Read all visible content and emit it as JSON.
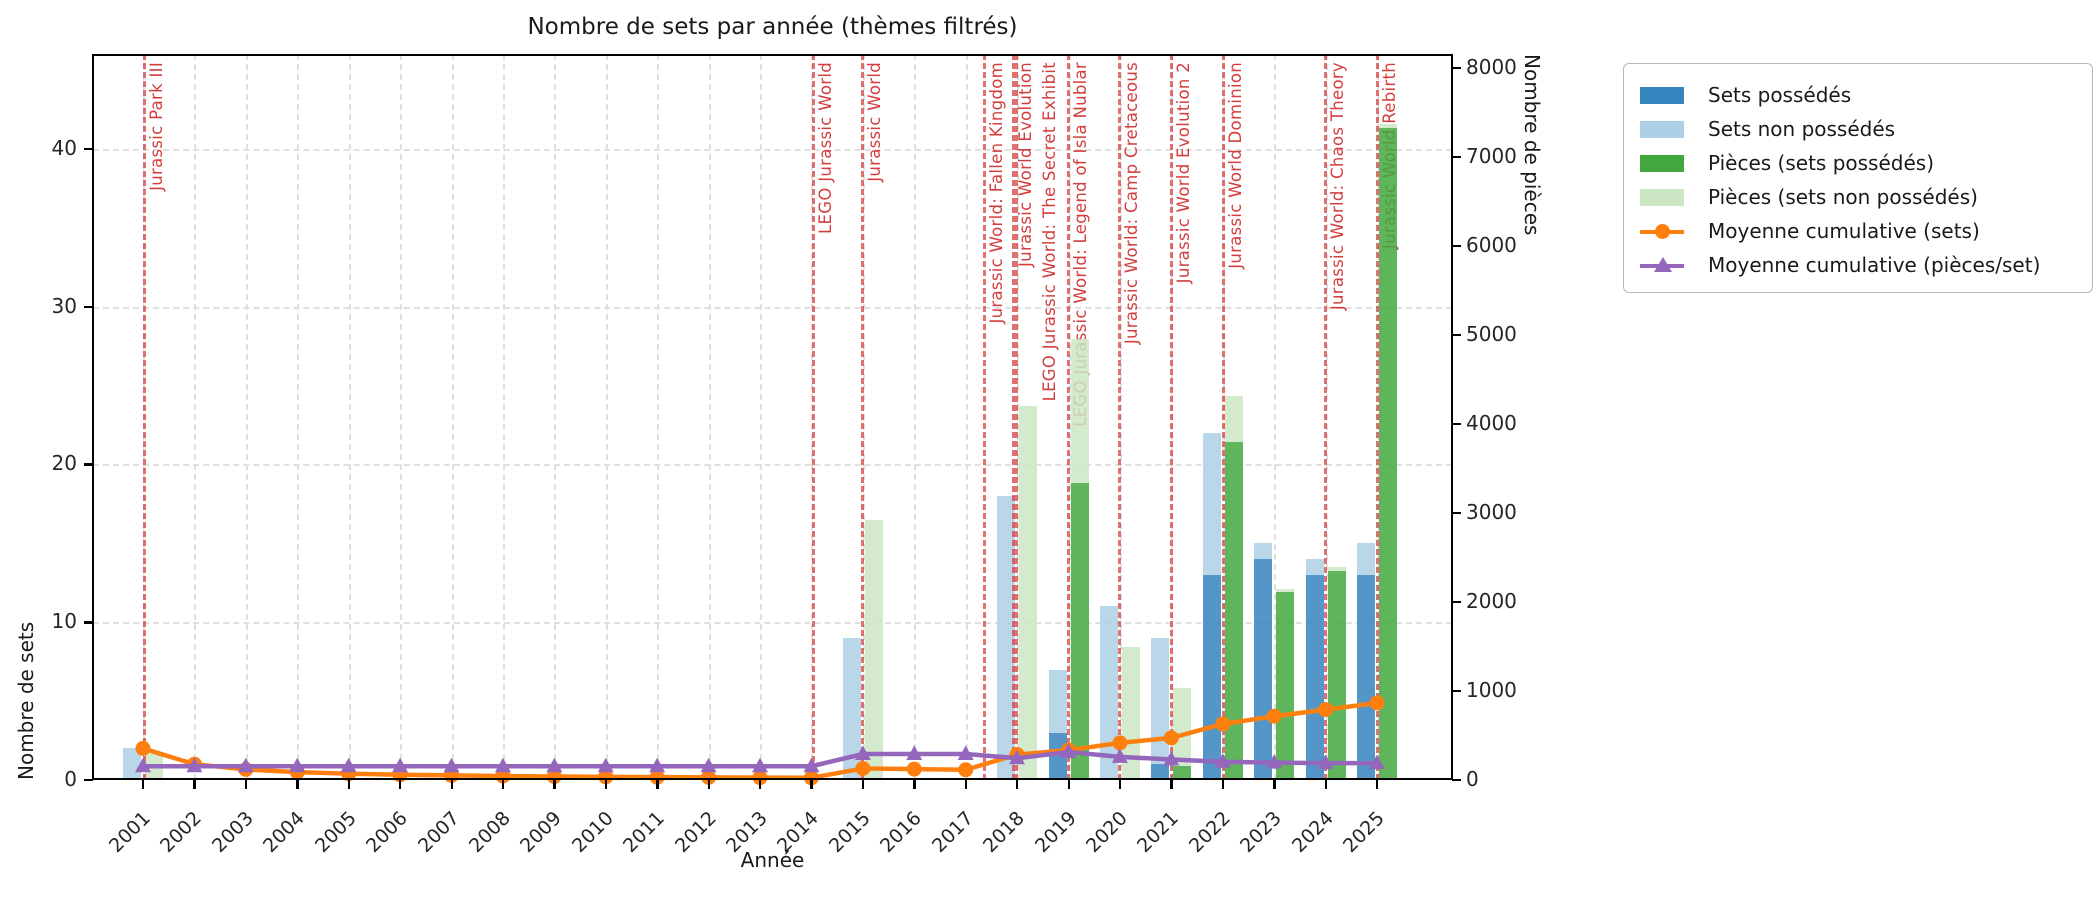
{
  "title": "Nombre de sets par année (thèmes filtrés)",
  "axes": {
    "x_label": "Année",
    "y_left_label": "Nombre de sets",
    "y_right_label": "Nombre de pièces",
    "y_left_ticks": [
      0,
      10,
      20,
      30,
      40
    ],
    "y_left_max": 46,
    "y_right_ticks": [
      0,
      1000,
      2000,
      3000,
      4000,
      5000,
      6000,
      7000,
      8000
    ],
    "y_right_max": 8157,
    "grid": true
  },
  "legend": {
    "position": "outside-right",
    "items": [
      {
        "label": "Sets possédés",
        "marker": "patch",
        "color": "#3584bd"
      },
      {
        "label": "Sets non possédés",
        "marker": "patch",
        "color": "#aed0e6"
      },
      {
        "label": "Pièces (sets possédés)",
        "marker": "patch",
        "color": "#42a83e"
      },
      {
        "label": "Pièces (sets non possédés)",
        "marker": "patch",
        "color": "#cbe6c3"
      },
      {
        "label": "Moyenne cumulative (sets)",
        "marker": "line-circle",
        "color": "#ff7f0e"
      },
      {
        "label": "Moyenne cumulative (pièces/set)",
        "marker": "line-triangle",
        "color": "#9467bd"
      }
    ]
  },
  "chart_data": {
    "type": "bar",
    "categories": [
      "2001",
      "2002",
      "2003",
      "2004",
      "2005",
      "2006",
      "2007",
      "2008",
      "2009",
      "2010",
      "2011",
      "2012",
      "2013",
      "2014",
      "2015",
      "2016",
      "2017",
      "2018",
      "2019",
      "2020",
      "2021",
      "2022",
      "2023",
      "2024",
      "2025"
    ],
    "series": [
      {
        "name": "Sets possédés",
        "kind": "bar",
        "axis": "left",
        "stack": "sets",
        "color": "#3584bd",
        "values": [
          0,
          0,
          0,
          0,
          0,
          0,
          0,
          0,
          0,
          0,
          0,
          0,
          0,
          0,
          0,
          0,
          0,
          0,
          3,
          0,
          1,
          13,
          14,
          13,
          13
        ]
      },
      {
        "name": "Sets non possédés",
        "kind": "bar",
        "axis": "left",
        "stack": "sets",
        "color": "#aed0e6",
        "values": [
          2,
          0,
          0,
          0,
          0,
          0,
          0,
          0,
          0,
          0,
          0,
          0,
          0,
          0,
          9,
          0,
          0,
          18,
          4,
          11,
          8,
          9,
          1,
          1,
          2
        ]
      },
      {
        "name": "Pièces (sets possédés)",
        "kind": "bar",
        "axis": "right",
        "stack": "pieces",
        "color": "#42a83e",
        "values": [
          0,
          0,
          0,
          0,
          0,
          0,
          0,
          0,
          0,
          0,
          0,
          0,
          0,
          0,
          0,
          0,
          0,
          0,
          3340,
          0,
          160,
          3800,
          2110,
          2350,
          7330
        ]
      },
      {
        "name": "Pièces (sets non possédés)",
        "kind": "bar",
        "axis": "right",
        "stack": "pieces",
        "color": "#cbe6c3",
        "values": [
          310,
          0,
          0,
          0,
          0,
          0,
          0,
          0,
          0,
          0,
          0,
          0,
          0,
          0,
          2920,
          0,
          0,
          4200,
          1620,
          1490,
          870,
          510,
          40,
          40,
          40
        ]
      },
      {
        "name": "Moyenne cumulative (sets)",
        "kind": "line",
        "axis": "left",
        "color": "#ff7f0e",
        "marker": "circle",
        "values": [
          2.0,
          1.0,
          0.67,
          0.5,
          0.4,
          0.33,
          0.29,
          0.25,
          0.22,
          0.2,
          0.18,
          0.17,
          0.15,
          0.14,
          0.73,
          0.69,
          0.65,
          1.61,
          1.89,
          2.35,
          2.67,
          3.55,
          4.04,
          4.46,
          4.88
        ]
      },
      {
        "name": "Moyenne cumulative (pièces/set)",
        "kind": "line",
        "axis": "right",
        "color": "#9467bd",
        "marker": "triangle",
        "values": [
          155,
          155,
          155,
          155,
          155,
          155,
          155,
          155,
          155,
          155,
          155,
          155,
          155,
          155,
          292,
          292,
          292,
          245,
          315,
          260,
          230,
          205,
          195,
          190,
          190
        ]
      }
    ],
    "annotations": [
      {
        "year_offset": 0.07,
        "label": "Jurassic Park III"
      },
      {
        "year_offset": 13.08,
        "label": "LEGO Jurassic World"
      },
      {
        "year_offset": 14.04,
        "label": "Jurassic World"
      },
      {
        "year_offset": 16.4,
        "label": "Jurassic World: Fallen Kingdom"
      },
      {
        "year_offset": 16.98,
        "label": "Jurassic World Evolution"
      },
      {
        "year_offset": 17.02,
        "label": "LEGO Jurassic World: The Secret Exhibit",
        "label_dx": 21
      },
      {
        "year_offset": 18.04,
        "label": "LEGO Jurassic World: Legend of Isla Nublar"
      },
      {
        "year_offset": 19.03,
        "label": "Jurassic World: Camp Cretaceous"
      },
      {
        "year_offset": 20.04,
        "label": "Jurassic World Evolution 2"
      },
      {
        "year_offset": 21.05,
        "label": "Jurassic World Dominion"
      },
      {
        "year_offset": 23.03,
        "label": "Jurassic World: Chaos Theory"
      },
      {
        "year_offset": 24.06,
        "label": "Jurassic World Rebirth"
      }
    ],
    "vline_color": "#d63939",
    "annotation_color": "#d43d3d"
  }
}
